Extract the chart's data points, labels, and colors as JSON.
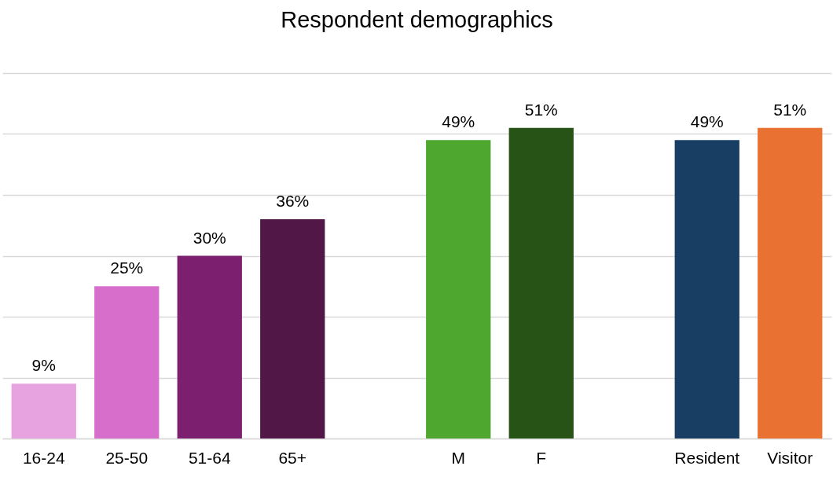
{
  "chart_data": {
    "type": "bar",
    "title": "Respondent demographics",
    "categories": [
      "16-24",
      "25-50",
      "51-64",
      "65+",
      null,
      "M",
      "F",
      null,
      "Resident",
      "Visitor"
    ],
    "values": [
      9,
      25,
      30,
      36,
      null,
      49,
      51,
      null,
      49,
      51
    ],
    "value_labels": [
      "9%",
      "25%",
      "30%",
      "36%",
      null,
      "49%",
      "51%",
      null,
      "49%",
      "51%"
    ],
    "colors": [
      "#e6a3df",
      "#d86ecc",
      "#7b1f6e",
      "#511747",
      "#ffffff",
      "#4ea72e",
      "#275317",
      "#ffffff",
      "#193e63",
      "#e97132"
    ],
    "ylim": [
      0,
      60
    ],
    "yticks": [
      0,
      10,
      20,
      30,
      40,
      50,
      60
    ],
    "grid": "y",
    "tick_labels": "x"
  }
}
